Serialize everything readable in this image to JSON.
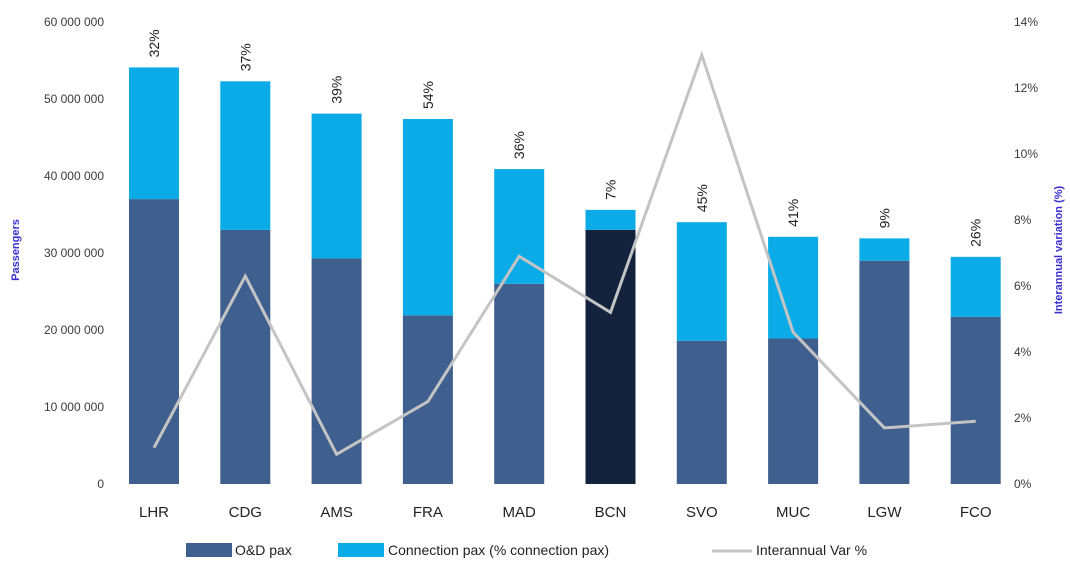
{
  "chart_data": {
    "type": "bar",
    "stacked": true,
    "categories": [
      "LHR",
      "CDG",
      "AMS",
      "FRA",
      "MAD",
      "BCN",
      "SVO",
      "MUC",
      "LGW",
      "FCO"
    ],
    "series": [
      {
        "name": "O&D pax",
        "axis": "left",
        "values": [
          37000000,
          33000000,
          29300000,
          21900000,
          26000000,
          33000000,
          18600000,
          18900000,
          29000000,
          21700000
        ]
      },
      {
        "name": "Connection pax (% connection pax)",
        "axis": "left",
        "values": [
          17100000,
          19300000,
          18800000,
          25500000,
          14900000,
          2600000,
          15400000,
          13200000,
          2900000,
          7800000
        ]
      },
      {
        "name": "Interannual Var %",
        "type": "line",
        "axis": "right",
        "values": [
          1.1,
          6.3,
          0.9,
          2.5,
          6.9,
          5.2,
          13.0,
          4.6,
          1.7,
          1.9
        ]
      }
    ],
    "data_labels": [
      "32%",
      "37%",
      "39%",
      "54%",
      "36%",
      "7%",
      "45%",
      "41%",
      "9%",
      "26%"
    ],
    "highlight_category": "BCN",
    "ylabel": "Passengers",
    "ylim": [
      0,
      60000000
    ],
    "yticks": [
      "0",
      "10 000 000",
      "20 000 000",
      "30 000 000",
      "40 000 000",
      "50 000 000",
      "60 000 000"
    ],
    "y2label": "Interannual variation (%)",
    "y2lim": [
      0,
      14
    ],
    "y2ticks": [
      "0%",
      "2%",
      "4%",
      "6%",
      "8%",
      "10%",
      "12%",
      "14%"
    ],
    "legend_position": "bottom",
    "grid": false,
    "colors": {
      "od": "#3f5f8e",
      "od_highlight": "#13223d",
      "connection": "#0aabe6",
      "line": "#c4c4c4",
      "axis_title": "#3b2fd0"
    }
  }
}
